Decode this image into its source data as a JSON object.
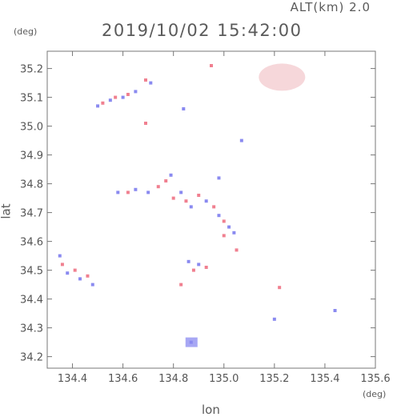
{
  "header": {
    "altitude_label": "ALT(km) 2.0",
    "timestamp": "2019/10/02 15:42:00"
  },
  "chart_data": {
    "type": "scatter",
    "title": "2019/10/02 15:42:00",
    "xlabel": "lon",
    "ylabel": "lat",
    "x_unit": "(deg)",
    "y_unit": "(deg)",
    "xlim": [
      134.3,
      135.6
    ],
    "ylim": [
      34.16,
      35.26
    ],
    "x_ticks": [
      "134.4",
      "134.6",
      "134.8",
      "135.0",
      "135.2",
      "135.4",
      "135.6"
    ],
    "y_ticks": [
      "34.2",
      "34.3",
      "34.4",
      "34.5",
      "34.6",
      "34.7",
      "34.8",
      "34.9",
      "35.0",
      "35.1",
      "35.2"
    ],
    "grid": false,
    "colors": {
      "positive": "#f08090",
      "negative": "#8a8af0",
      "faint": "#f4d0d4"
    },
    "series": [
      {
        "points": [
          {
            "lon": 134.5,
            "lat": 35.07,
            "c": "negative"
          },
          {
            "lon": 134.52,
            "lat": 35.08,
            "c": "positive"
          },
          {
            "lon": 134.55,
            "lat": 35.09,
            "c": "negative"
          },
          {
            "lon": 134.57,
            "lat": 35.1,
            "c": "positive"
          },
          {
            "lon": 134.6,
            "lat": 35.1,
            "c": "negative"
          },
          {
            "lon": 134.62,
            "lat": 35.11,
            "c": "positive"
          },
          {
            "lon": 134.65,
            "lat": 35.12,
            "c": "negative"
          },
          {
            "lon": 134.69,
            "lat": 35.16,
            "c": "positive"
          },
          {
            "lon": 134.71,
            "lat": 35.15,
            "c": "negative"
          },
          {
            "lon": 134.69,
            "lat": 35.01,
            "c": "positive"
          },
          {
            "lon": 134.84,
            "lat": 35.06,
            "c": "negative"
          },
          {
            "lon": 134.95,
            "lat": 35.21,
            "c": "positive"
          },
          {
            "lon": 135.07,
            "lat": 34.95,
            "c": "negative"
          },
          {
            "lon": 134.58,
            "lat": 34.77,
            "c": "negative"
          },
          {
            "lon": 134.62,
            "lat": 34.77,
            "c": "positive"
          },
          {
            "lon": 134.65,
            "lat": 34.78,
            "c": "negative"
          },
          {
            "lon": 134.7,
            "lat": 34.77,
            "c": "negative"
          },
          {
            "lon": 134.74,
            "lat": 34.79,
            "c": "positive"
          },
          {
            "lon": 134.77,
            "lat": 34.81,
            "c": "positive"
          },
          {
            "lon": 134.79,
            "lat": 34.83,
            "c": "negative"
          },
          {
            "lon": 134.8,
            "lat": 34.75,
            "c": "positive"
          },
          {
            "lon": 134.83,
            "lat": 34.77,
            "c": "negative"
          },
          {
            "lon": 134.85,
            "lat": 34.74,
            "c": "positive"
          },
          {
            "lon": 134.87,
            "lat": 34.72,
            "c": "negative"
          },
          {
            "lon": 134.9,
            "lat": 34.76,
            "c": "positive"
          },
          {
            "lon": 134.93,
            "lat": 34.74,
            "c": "negative"
          },
          {
            "lon": 134.96,
            "lat": 34.72,
            "c": "positive"
          },
          {
            "lon": 134.98,
            "lat": 34.69,
            "c": "negative"
          },
          {
            "lon": 135.0,
            "lat": 34.67,
            "c": "positive"
          },
          {
            "lon": 135.02,
            "lat": 34.65,
            "c": "negative"
          },
          {
            "lon": 135.0,
            "lat": 34.62,
            "c": "positive"
          },
          {
            "lon": 135.04,
            "lat": 34.63,
            "c": "negative"
          },
          {
            "lon": 135.05,
            "lat": 34.57,
            "c": "positive"
          },
          {
            "lon": 134.98,
            "lat": 34.82,
            "c": "negative"
          },
          {
            "lon": 134.35,
            "lat": 34.55,
            "c": "negative"
          },
          {
            "lon": 134.36,
            "lat": 34.52,
            "c": "positive"
          },
          {
            "lon": 134.38,
            "lat": 34.49,
            "c": "negative"
          },
          {
            "lon": 134.41,
            "lat": 34.5,
            "c": "positive"
          },
          {
            "lon": 134.43,
            "lat": 34.47,
            "c": "negative"
          },
          {
            "lon": 134.46,
            "lat": 34.48,
            "c": "positive"
          },
          {
            "lon": 134.48,
            "lat": 34.45,
            "c": "negative"
          },
          {
            "lon": 134.86,
            "lat": 34.53,
            "c": "negative"
          },
          {
            "lon": 134.88,
            "lat": 34.5,
            "c": "positive"
          },
          {
            "lon": 134.9,
            "lat": 34.52,
            "c": "negative"
          },
          {
            "lon": 134.93,
            "lat": 34.51,
            "c": "positive"
          },
          {
            "lon": 134.83,
            "lat": 34.45,
            "c": "positive"
          },
          {
            "lon": 135.22,
            "lat": 34.44,
            "c": "positive"
          },
          {
            "lon": 135.2,
            "lat": 34.33,
            "c": "negative"
          },
          {
            "lon": 135.44,
            "lat": 34.36,
            "c": "negative"
          },
          {
            "lon": 134.87,
            "lat": 34.25,
            "c": "negative"
          }
        ]
      }
    ],
    "blobs": [
      {
        "lon": 135.23,
        "lat": 35.17,
        "c": "faint"
      },
      {
        "lon": 134.87,
        "lat": 34.25,
        "c": "negative"
      }
    ]
  }
}
